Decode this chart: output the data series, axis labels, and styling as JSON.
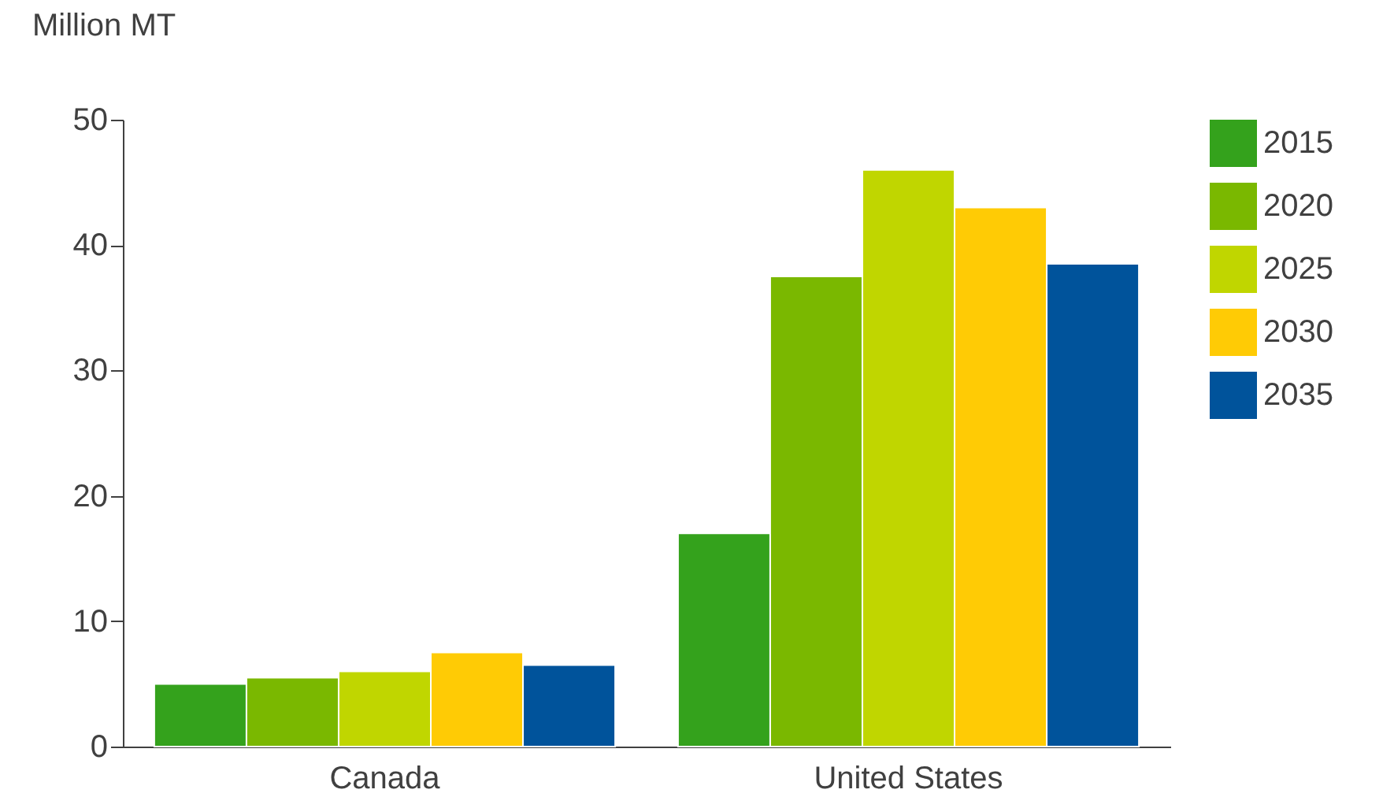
{
  "chart_data": {
    "type": "bar",
    "ylabel": "Million MT",
    "categories": [
      "Canada",
      "United States"
    ],
    "series": [
      {
        "name": "2015",
        "color": "#34a21c",
        "values": [
          5,
          17
        ]
      },
      {
        "name": "2020",
        "color": "#7ab800",
        "values": [
          5.5,
          37.5
        ]
      },
      {
        "name": "2025",
        "color": "#c0d600",
        "values": [
          6,
          46
        ]
      },
      {
        "name": "2030",
        "color": "#ffcb05",
        "values": [
          7.5,
          43
        ]
      },
      {
        "name": "2035",
        "color": "#00539b",
        "values": [
          6.5,
          38.5
        ]
      }
    ],
    "ylim": [
      0,
      50
    ],
    "yticks": [
      0,
      10,
      20,
      30,
      40,
      50
    ],
    "grid": false,
    "legend": "right"
  }
}
